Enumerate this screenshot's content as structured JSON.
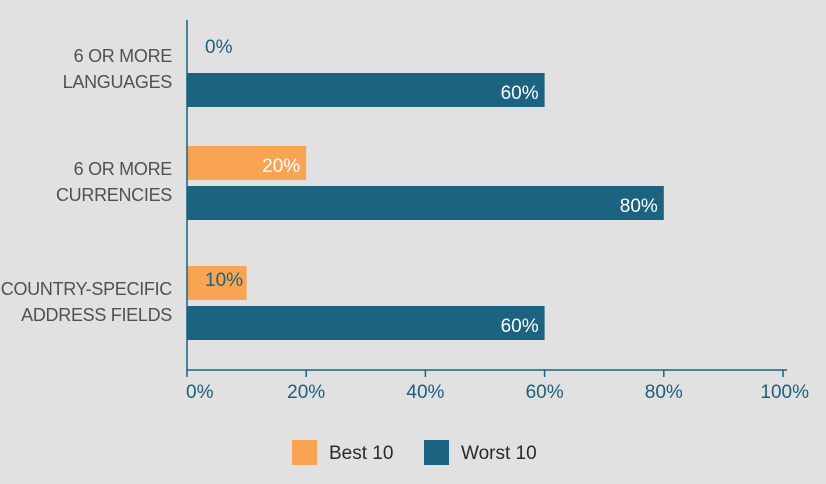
{
  "chart_data": {
    "type": "bar",
    "orientation": "horizontal",
    "categories": [
      [
        "6 OR MORE",
        "LANGUAGES"
      ],
      [
        "6 OR MORE",
        "CURRENCIES"
      ],
      [
        "COUNTRY-SPECIFIC",
        "ADDRESS FIELDS"
      ]
    ],
    "series": [
      {
        "name": "Best 10",
        "color": "#f8a453",
        "values": [
          0,
          20,
          10
        ],
        "labels": [
          "0%",
          "20%",
          "10%"
        ]
      },
      {
        "name": "Worst 10",
        "color": "#1b6380",
        "values": [
          60,
          80,
          60
        ],
        "labels": [
          "60%",
          "80%",
          "60%"
        ]
      }
    ],
    "xlim": [
      0,
      100
    ],
    "xticks": [
      "0%",
      "20%",
      "40%",
      "60%",
      "80%",
      "100%"
    ],
    "title": "",
    "xlabel": "",
    "ylabel": "",
    "grid": false,
    "legend_position": "bottom-center"
  }
}
